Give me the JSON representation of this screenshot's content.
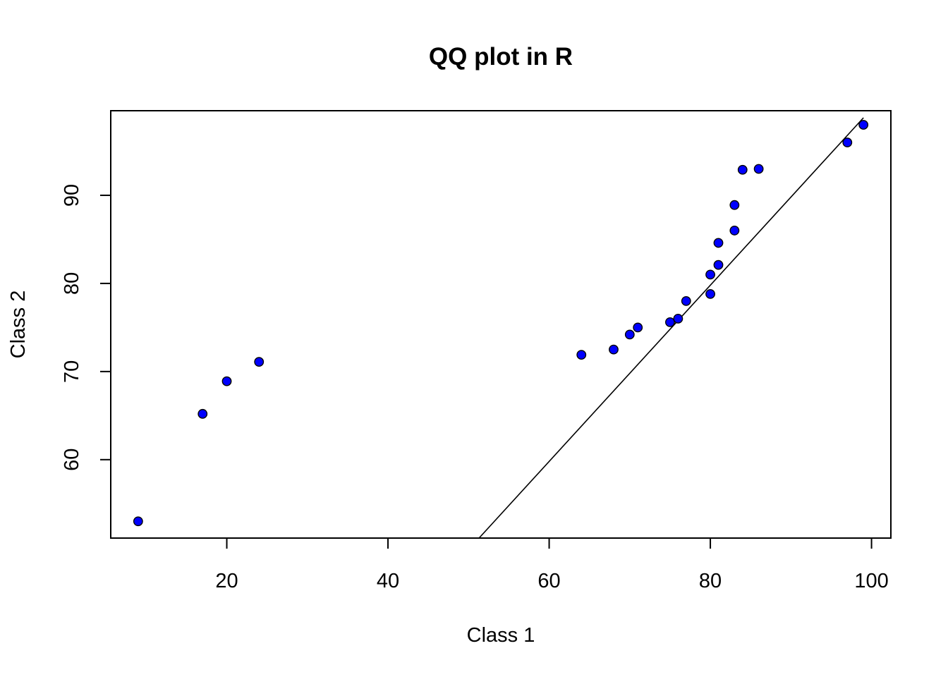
{
  "chart_data": {
    "type": "scatter",
    "title": "QQ plot in R",
    "xlabel": "Class 1",
    "ylabel": "Class 2",
    "xlim": [
      5.6,
      102.4
    ],
    "ylim": [
      51.1,
      99.6
    ],
    "x_ticks": [
      20,
      40,
      60,
      80,
      100
    ],
    "y_ticks": [
      60,
      70,
      80,
      90
    ],
    "grid": false,
    "legend": "none",
    "point_color": "#0000ff",
    "point_edge_color": "#000000",
    "line_color": "#000000",
    "points": [
      {
        "x": 9,
        "y": 53
      },
      {
        "x": 17,
        "y": 65.2
      },
      {
        "x": 20,
        "y": 68.9
      },
      {
        "x": 24,
        "y": 71.1
      },
      {
        "x": 64,
        "y": 71.9
      },
      {
        "x": 68,
        "y": 72.5
      },
      {
        "x": 70,
        "y": 74.2
      },
      {
        "x": 71,
        "y": 75
      },
      {
        "x": 75,
        "y": 75.6
      },
      {
        "x": 76,
        "y": 76
      },
      {
        "x": 77,
        "y": 78
      },
      {
        "x": 80,
        "y": 78.8
      },
      {
        "x": 80,
        "y": 81
      },
      {
        "x": 81,
        "y": 82.1
      },
      {
        "x": 81,
        "y": 84.6
      },
      {
        "x": 83,
        "y": 86
      },
      {
        "x": 83,
        "y": 88.9
      },
      {
        "x": 84,
        "y": 92.9
      },
      {
        "x": 86,
        "y": 93
      },
      {
        "x": 97,
        "y": 96
      },
      {
        "x": 99,
        "y": 98
      }
    ],
    "reference_line": {
      "from": {
        "x": 51.3,
        "y": 51.1
      },
      "to": {
        "x": 99,
        "y": 98.8
      }
    }
  }
}
